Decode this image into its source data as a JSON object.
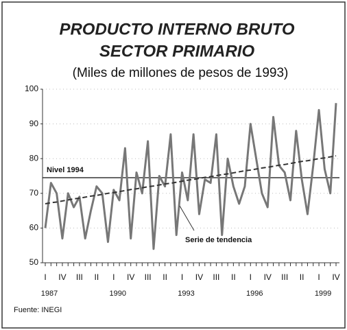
{
  "chart_data": {
    "type": "line",
    "title": [
      "PRODUCTO INTERNO BRUTO",
      "SECTOR PRIMARIO"
    ],
    "subtitle": "(Miles de millones de pesos de 1993)",
    "source": "Fuente: INEGI",
    "categories": [
      "I",
      null,
      null,
      "IV",
      null,
      null,
      "III",
      null,
      null,
      "II",
      null,
      null,
      "I",
      null,
      null,
      "IV",
      null,
      null,
      "III",
      null,
      null,
      "II",
      null,
      null,
      "I",
      null,
      null,
      "IV",
      null,
      null,
      "III",
      null,
      null,
      "II",
      null,
      null,
      "I",
      null,
      null,
      "IV",
      null,
      null,
      "III",
      null,
      null,
      "II",
      null,
      null,
      "I",
      null,
      null,
      "IV"
    ],
    "year_labels": [
      "1987",
      null,
      null,
      null,
      null,
      null,
      null,
      null,
      null,
      null,
      null,
      null,
      "1990",
      null,
      null,
      null,
      null,
      null,
      null,
      null,
      null,
      null,
      null,
      null,
      "1993",
      null,
      null,
      null,
      null,
      null,
      null,
      null,
      null,
      null,
      null,
      null,
      "1996",
      null,
      null,
      null,
      null,
      null,
      null,
      null,
      null,
      null,
      null,
      null,
      "1999",
      null,
      null,
      null
    ],
    "series": [
      {
        "color": "#777777",
        "style": "solid",
        "values": [
          60,
          73,
          70,
          57,
          70,
          66,
          69,
          57,
          65,
          72,
          70,
          56,
          71,
          68,
          83,
          57,
          76,
          70,
          85,
          54,
          75,
          72,
          87,
          58,
          76,
          68,
          87,
          64,
          74,
          73,
          87,
          58,
          80,
          72,
          67,
          72,
          90,
          80,
          70,
          66,
          92,
          78,
          76,
          68,
          88,
          74,
          64,
          78,
          94,
          77,
          70,
          96
        ]
      },
      {
        "name": "Serie de tendencia",
        "color": "#333333",
        "style": "dashed",
        "values": [
          67.0,
          67.3,
          67.5,
          67.8,
          68.1,
          68.4,
          68.6,
          68.9,
          69.2,
          69.4,
          69.7,
          70.0,
          70.2,
          70.5,
          70.8,
          71.1,
          71.3,
          71.6,
          71.9,
          72.1,
          72.4,
          72.7,
          72.9,
          73.2,
          73.5,
          73.8,
          74.0,
          74.3,
          74.6,
          74.8,
          75.1,
          75.4,
          75.6,
          75.9,
          76.2,
          76.5,
          76.7,
          77.0,
          77.3,
          77.5,
          77.8,
          78.1,
          78.3,
          78.6,
          78.9,
          79.2,
          79.4,
          79.7,
          80.0,
          80.2,
          80.5,
          80.8
        ]
      }
    ],
    "reference_line": {
      "label": "Nivel 1994",
      "value": 74.5,
      "color": "#333333"
    },
    "ylim": [
      50,
      100
    ],
    "yticks": [
      50,
      60,
      70,
      80,
      90,
      100
    ],
    "grid": true
  }
}
